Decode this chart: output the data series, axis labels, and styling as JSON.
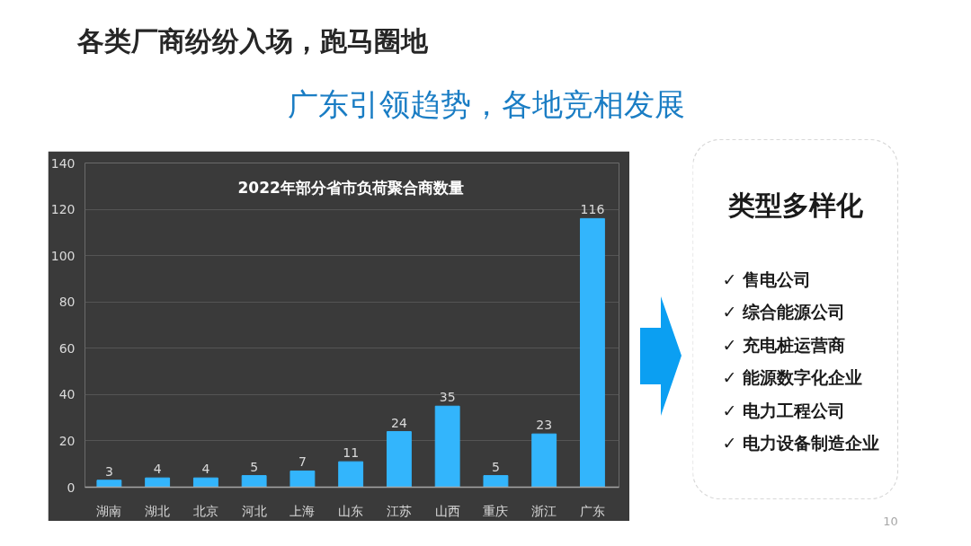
{
  "chart_data": [
    {
      "type": "other",
      "title": "各类厂商纷纷入场，跑马圈地",
      "subtitle": "广东引领趋势，各地竞相发展"
    },
    {
      "type": "bar",
      "title": "2022年部分省市负荷聚合商数量",
      "categories": [
        "湖南",
        "湖北",
        "北京",
        "河北",
        "上海",
        "山东",
        "江苏",
        "山西",
        "重庆",
        "浙江",
        "广东"
      ],
      "values": [
        3,
        4,
        4,
        5,
        7,
        11,
        24,
        35,
        5,
        23,
        116
      ],
      "color": "#33b5fc",
      "ylim": [
        0,
        140
      ],
      "yticks": [
        0,
        20,
        40,
        60,
        80,
        100,
        120,
        140
      ],
      "grid": "y",
      "data_labels": true
    },
    {
      "type": "other",
      "title": "类型多样化",
      "annotations": [
        "✓ 售电公司",
        "✓ 综合能源公司",
        "✓ 充电桩运营商",
        "✓ 能源数字化企业",
        "✓ 电力工程公司",
        "✓ 电力设备制造企业",
        "10"
      ]
    }
  ]
}
